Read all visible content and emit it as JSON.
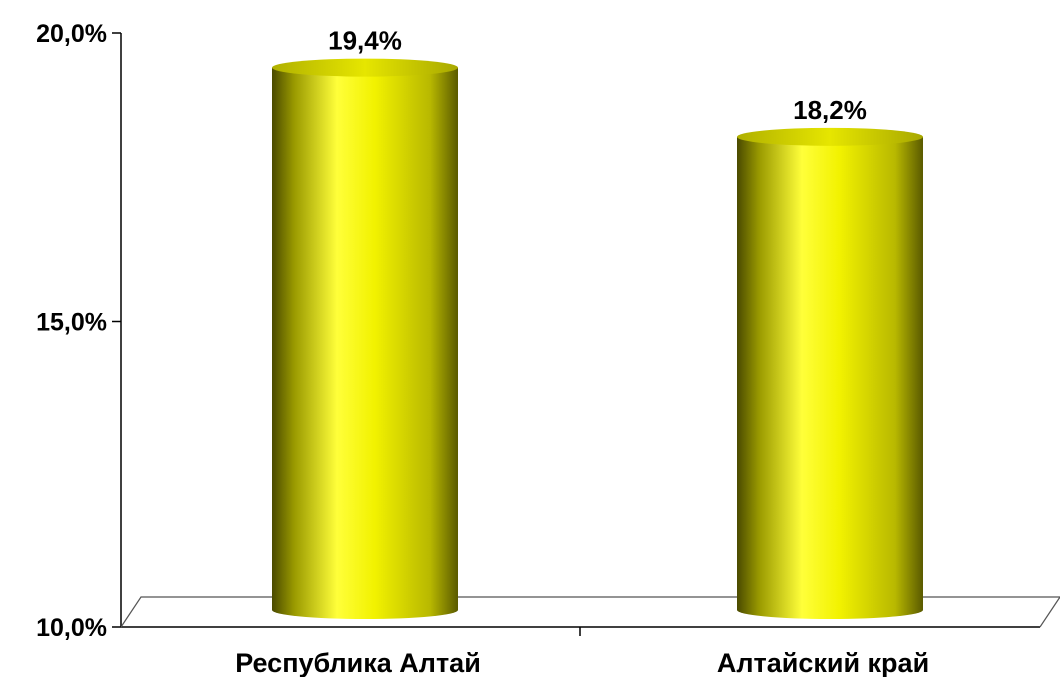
{
  "chart_data": {
    "type": "bar",
    "style": "3d-cylinder",
    "categories": [
      "Республика Алтай",
      "Алтайский край"
    ],
    "values": [
      19.4,
      18.2
    ],
    "data_labels": [
      "19,4%",
      "18,2%"
    ],
    "ylim": [
      10,
      20
    ],
    "yticks": [
      10,
      15,
      20
    ],
    "ytick_labels": [
      "10,0%",
      "15,0%",
      "20,0%"
    ],
    "title": "",
    "xlabel": "",
    "ylabel": "",
    "grid": false,
    "legend": "none",
    "bar_color": "#ffff00",
    "bar_shade_color": "#5a5a00"
  }
}
